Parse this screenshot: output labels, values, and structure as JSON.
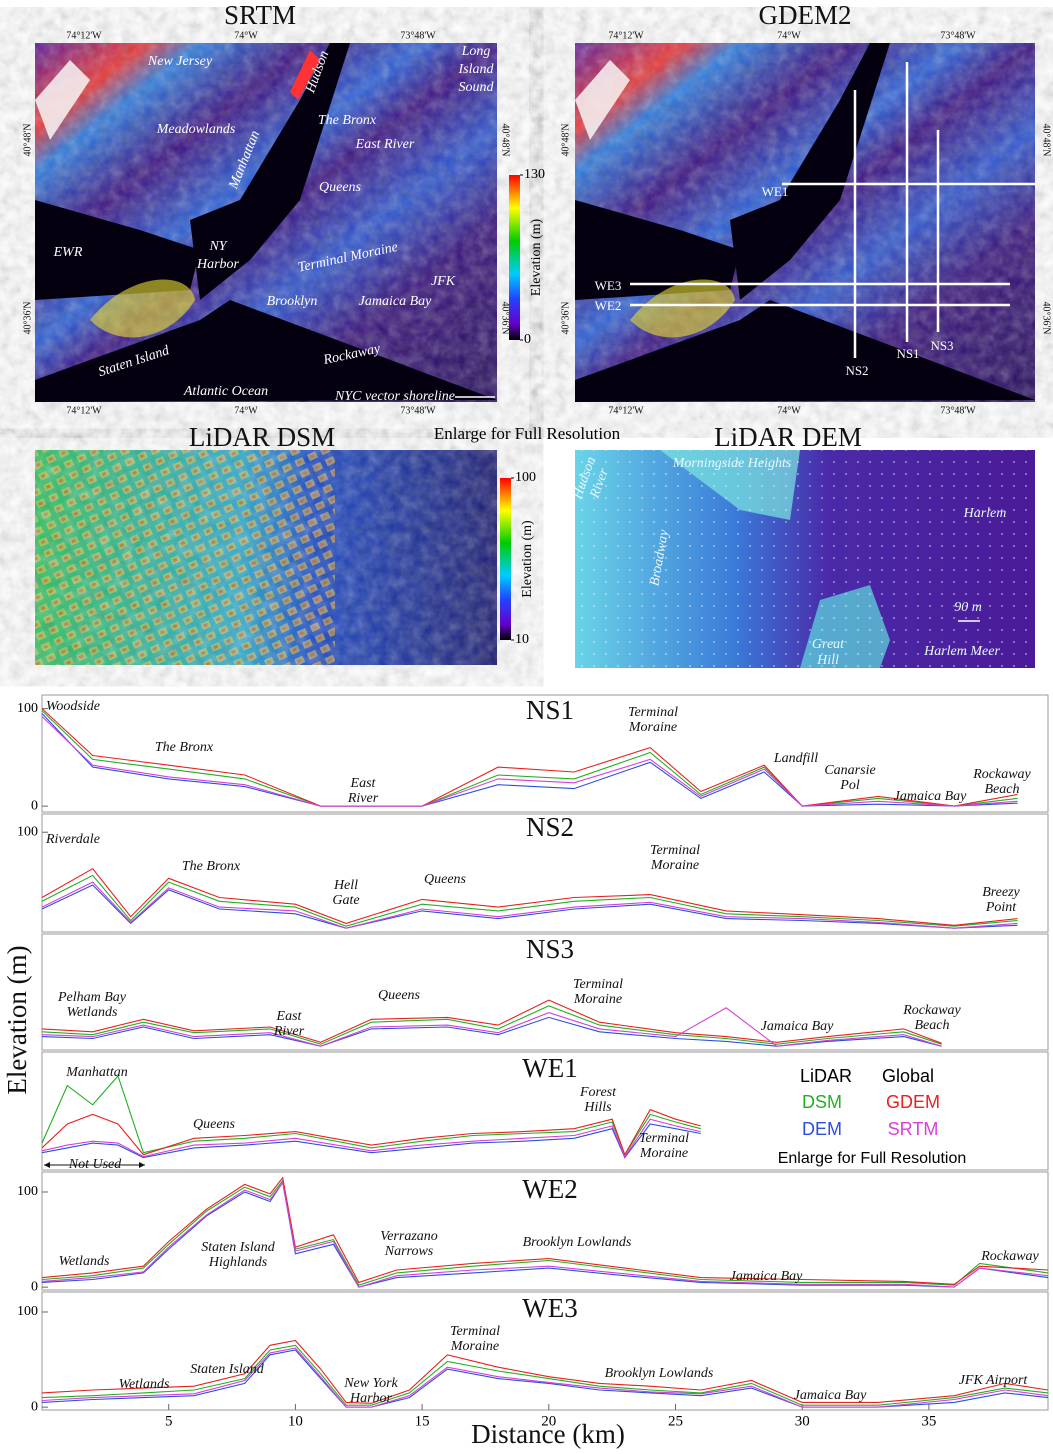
{
  "maps": {
    "srtm": {
      "title": "SRTM",
      "lon_top": [
        "74°12'W",
        "74°W",
        "73°48'W"
      ],
      "lon_bottom": [
        "74°12'W",
        "74°W",
        "73°48'W"
      ],
      "lat_left": [
        "40°48'N",
        "40°36'N"
      ],
      "lat_right": [
        "40°48'N",
        "40°36'N"
      ],
      "labels": [
        "New Jersey",
        "Meadowlands",
        "Manhattan",
        "Hudson",
        [
          "Long",
          "Island",
          "Sound"
        ],
        "The Bronx",
        "East River",
        "Queens",
        "EWR",
        [
          "NY",
          "Harbor"
        ],
        "Terminal Moraine",
        "JFK",
        "Brooklyn",
        "Jamaica Bay",
        "Staten Island",
        "Rockaway",
        "Atlantic Ocean",
        "NYC vector shoreline"
      ],
      "colorbar": {
        "label": "Elevation (m)",
        "lim": [
          0,
          130
        ],
        "ticks": [
          0,
          130
        ]
      }
    },
    "gdem2": {
      "title": "GDEM2",
      "lon_top": [
        "74°12'W",
        "74°W",
        "73°48'W"
      ],
      "lon_bottom": [
        "74°12'W",
        "74°W",
        "73°48'W"
      ],
      "lat_left": [
        "40°48'N",
        "40°36'N"
      ],
      "lat_right": [
        "40°48'N",
        "40°36'N"
      ],
      "transects": [
        "WE1",
        "WE3",
        "WE2",
        "NS2",
        "NS1",
        "NS3"
      ]
    },
    "note": "Enlarge for Full Resolution",
    "lidar_dsm": {
      "title": "LiDAR DSM",
      "colorbar": {
        "label": "Elevation (m)",
        "lim": [
          10,
          100
        ],
        "ticks": [
          10,
          100
        ]
      }
    },
    "lidar_dem": {
      "title": "LiDAR DEM",
      "labels": [
        "Morningside Heights",
        [
          "Hudson",
          "River"
        ],
        "Broadway",
        "Harlem",
        "90 m",
        [
          "Great",
          "Hill"
        ],
        "Harlem Meer"
      ]
    }
  },
  "chart_data": [
    {
      "type": "line",
      "title": "NS1",
      "ylabel": "Elevation (m)",
      "x": [
        0,
        2,
        5,
        8,
        11,
        13,
        15,
        18,
        21,
        24,
        26,
        28.5,
        30,
        33,
        36,
        38.5
      ],
      "xlim": [
        0,
        39.7
      ],
      "ylim": [
        -6,
        114
      ],
      "yticks": [
        0,
        100
      ],
      "series": [
        {
          "name": "DSM",
          "color": "#22b022",
          "values": [
            98,
            48,
            38,
            28,
            0,
            0,
            0,
            32,
            28,
            55,
            12,
            40,
            0,
            8,
            0,
            8
          ]
        },
        {
          "name": "GDEM",
          "color": "#e8211e",
          "values": [
            100,
            52,
            42,
            32,
            0,
            0,
            0,
            40,
            35,
            60,
            15,
            42,
            0,
            10,
            0,
            12
          ]
        },
        {
          "name": "DEM",
          "color": "#2a4fe0",
          "values": [
            95,
            40,
            28,
            20,
            0,
            0,
            0,
            22,
            18,
            45,
            8,
            35,
            0,
            2,
            0,
            3
          ]
        },
        {
          "name": "SRTM",
          "color": "#d83ed8",
          "values": [
            92,
            42,
            30,
            22,
            0,
            0,
            0,
            28,
            24,
            48,
            10,
            38,
            0,
            5,
            0,
            5
          ]
        }
      ],
      "annotations": [
        "Woodside",
        "The Bronx",
        [
          "East",
          "River"
        ],
        [
          "Terminal",
          "Moraine"
        ],
        "Landfill",
        [
          "Canarsie",
          "Pol"
        ],
        "Jamaica Bay",
        [
          "Rockaway",
          "Beach"
        ]
      ]
    },
    {
      "type": "line",
      "title": "NS2",
      "x": [
        0,
        2,
        3.5,
        5,
        7,
        10,
        12,
        15,
        18,
        21,
        24,
        27,
        30,
        33,
        36,
        38.5
      ],
      "xlim": [
        0,
        39.7
      ],
      "ylim": [
        -4,
        119
      ],
      "yticks": [
        100
      ],
      "series": [
        {
          "name": "DSM",
          "color": "#22b022",
          "values": [
            28,
            55,
            8,
            48,
            28,
            22,
            2,
            25,
            18,
            28,
            32,
            15,
            12,
            8,
            2,
            8
          ]
        },
        {
          "name": "GDEM",
          "color": "#e8211e",
          "values": [
            32,
            62,
            12,
            52,
            32,
            25,
            5,
            30,
            22,
            32,
            35,
            18,
            14,
            10,
            3,
            10
          ]
        },
        {
          "name": "DEM",
          "color": "#2a4fe0",
          "values": [
            20,
            45,
            5,
            40,
            20,
            15,
            0,
            18,
            10,
            20,
            25,
            10,
            8,
            5,
            0,
            3
          ]
        },
        {
          "name": "SRTM",
          "color": "#d83ed8",
          "values": [
            22,
            48,
            6,
            42,
            22,
            18,
            0,
            20,
            12,
            22,
            27,
            12,
            10,
            6,
            0,
            5
          ]
        }
      ],
      "annotations": [
        "Riverdale",
        "The Bronx",
        [
          "Hell",
          "Gate"
        ],
        "Queens",
        [
          "Terminal",
          "Moraine"
        ],
        [
          "Breezy",
          "Point"
        ]
      ]
    },
    {
      "type": "line",
      "title": "NS3",
      "x": [
        0,
        2,
        4,
        6,
        9,
        11,
        13,
        16,
        18,
        20,
        22,
        25,
        27,
        29,
        31,
        34,
        35.5
      ],
      "xlim": [
        0,
        39.7
      ],
      "ylim": [
        -4,
        117
      ],
      "series": [
        {
          "name": "DSM",
          "color": "#22b022",
          "values": [
            15,
            12,
            25,
            14,
            18,
            2,
            25,
            28,
            18,
            42,
            22,
            12,
            8,
            2,
            8,
            15,
            2
          ]
        },
        {
          "name": "GDEM",
          "color": "#e8211e",
          "values": [
            18,
            15,
            28,
            16,
            20,
            4,
            28,
            30,
            22,
            48,
            25,
            14,
            10,
            4,
            10,
            18,
            3
          ]
        },
        {
          "name": "DEM",
          "color": "#2a4fe0",
          "values": [
            10,
            8,
            20,
            8,
            12,
            0,
            18,
            20,
            12,
            30,
            15,
            8,
            5,
            0,
            5,
            10,
            0
          ]
        },
        {
          "name": "SRTM",
          "color": "#d83ed8",
          "values": [
            12,
            10,
            22,
            10,
            14,
            0,
            20,
            22,
            14,
            35,
            18,
            10,
            40,
            0,
            6,
            12,
            0
          ]
        }
      ],
      "annotations": [
        [
          "Pelham Bay",
          "Wetlands"
        ],
        [
          "East",
          "River"
        ],
        "Queens",
        [
          "Terminal",
          "Moraine"
        ],
        "Jamaica Bay",
        [
          "Rockaway",
          "Beach"
        ]
      ]
    },
    {
      "type": "line",
      "title": "WE1",
      "x": [
        0,
        1,
        2,
        3,
        4,
        6,
        8,
        10,
        13,
        15,
        17,
        19,
        21,
        22.5,
        23,
        24,
        25,
        26
      ],
      "xlim": [
        0,
        39.7
      ],
      "ylim": [
        -8,
        115
      ],
      "series": [
        {
          "name": "DSM",
          "color": "#22b022",
          "values": [
            20,
            80,
            60,
            90,
            10,
            22,
            25,
            30,
            15,
            22,
            28,
            30,
            32,
            42,
            8,
            50,
            42,
            35
          ]
        },
        {
          "name": "GDEM",
          "color": "#e8211e",
          "values": [
            15,
            40,
            50,
            40,
            8,
            25,
            28,
            32,
            18,
            25,
            30,
            32,
            35,
            45,
            8,
            55,
            45,
            38
          ]
        },
        {
          "name": "DEM",
          "color": "#2a4fe0",
          "values": [
            10,
            15,
            20,
            18,
            5,
            15,
            18,
            22,
            10,
            15,
            20,
            22,
            25,
            35,
            5,
            40,
            35,
            30
          ]
        },
        {
          "name": "SRTM",
          "color": "#d83ed8",
          "values": [
            12,
            18,
            22,
            20,
            6,
            18,
            20,
            25,
            12,
            18,
            22,
            25,
            28,
            38,
            6,
            45,
            38,
            32
          ]
        }
      ],
      "annotations": [
        "Manhattan",
        "Queens",
        [
          "Forest",
          "Hills"
        ],
        [
          "Terminal",
          "Moraine"
        ],
        "Not Used"
      ],
      "legend_groups": [
        "LiDAR",
        "Global"
      ],
      "note": "Enlarge for Full Resolution"
    },
    {
      "type": "line",
      "title": "WE2",
      "x": [
        0,
        2,
        4,
        5,
        6.5,
        8,
        9,
        9.5,
        10,
        11.5,
        12.5,
        14,
        17,
        20,
        23,
        26,
        30,
        34,
        36,
        37,
        39.7
      ],
      "xlim": [
        0,
        39.7
      ],
      "ylim": [
        -3,
        121
      ],
      "yticks": [
        0,
        100
      ],
      "series": [
        {
          "name": "DSM",
          "color": "#22b022",
          "values": [
            8,
            12,
            20,
            45,
            80,
            105,
            95,
            112,
            40,
            50,
            2,
            15,
            22,
            28,
            18,
            8,
            5,
            5,
            2,
            25,
            15
          ]
        },
        {
          "name": "GDEM",
          "color": "#e8211e",
          "values": [
            10,
            15,
            22,
            48,
            82,
            108,
            98,
            115,
            42,
            55,
            5,
            18,
            25,
            30,
            20,
            10,
            8,
            6,
            3,
            22,
            18
          ]
        },
        {
          "name": "DEM",
          "color": "#2a4fe0",
          "values": [
            5,
            8,
            15,
            40,
            75,
            100,
            90,
            110,
            35,
            45,
            0,
            10,
            15,
            20,
            12,
            5,
            2,
            2,
            0,
            20,
            10
          ]
        },
        {
          "name": "SRTM",
          "color": "#d83ed8",
          "values": [
            6,
            10,
            16,
            42,
            76,
            102,
            92,
            110,
            38,
            48,
            0,
            12,
            18,
            22,
            14,
            6,
            3,
            3,
            0,
            20,
            12
          ]
        }
      ],
      "annotations": [
        "Wetlands",
        [
          "Staten Island",
          "Highlands"
        ],
        [
          "Verrazano",
          "Narrows"
        ],
        "Brooklyn Lowlands",
        "Jamaica Bay",
        "Rockaway"
      ]
    },
    {
      "type": "line",
      "title": "WE3",
      "xlabel": "Distance (km)",
      "x": [
        0,
        2,
        4,
        6,
        8,
        9,
        10,
        11,
        12,
        13,
        14.5,
        16,
        18,
        20,
        22,
        24,
        26,
        28,
        30,
        33,
        36,
        38,
        39.7
      ],
      "xlim": [
        0,
        39.7
      ],
      "ylim": [
        -3,
        121
      ],
      "yticks": [
        0,
        100
      ],
      "xticks": [
        5,
        10,
        15,
        20,
        25,
        30,
        35
      ],
      "series": [
        {
          "name": "DSM",
          "color": "#22b022",
          "values": [
            10,
            12,
            15,
            18,
            30,
            60,
            65,
            35,
            2,
            2,
            15,
            48,
            38,
            30,
            22,
            18,
            15,
            25,
            2,
            2,
            10,
            20,
            15
          ]
        },
        {
          "name": "GDEM",
          "color": "#e8211e",
          "values": [
            15,
            18,
            20,
            22,
            35,
            65,
            70,
            40,
            5,
            4,
            18,
            55,
            42,
            32,
            25,
            22,
            18,
            28,
            5,
            5,
            12,
            25,
            18
          ]
        },
        {
          "name": "DEM",
          "color": "#2a4fe0",
          "values": [
            5,
            8,
            10,
            12,
            25,
            55,
            60,
            30,
            0,
            0,
            10,
            40,
            30,
            25,
            18,
            15,
            12,
            20,
            0,
            0,
            5,
            15,
            10
          ]
        },
        {
          "name": "SRTM",
          "color": "#d83ed8",
          "values": [
            7,
            10,
            12,
            14,
            28,
            57,
            62,
            32,
            0,
            0,
            12,
            42,
            32,
            26,
            20,
            16,
            14,
            22,
            0,
            0,
            8,
            18,
            12
          ]
        }
      ],
      "annotations": [
        "Wetlands",
        "Staten Island",
        [
          "New York",
          "Harbor"
        ],
        [
          "Terminal",
          "Moraine"
        ],
        "Brooklyn Lowlands",
        "Jamaica Bay",
        "JFK Airport"
      ]
    }
  ]
}
